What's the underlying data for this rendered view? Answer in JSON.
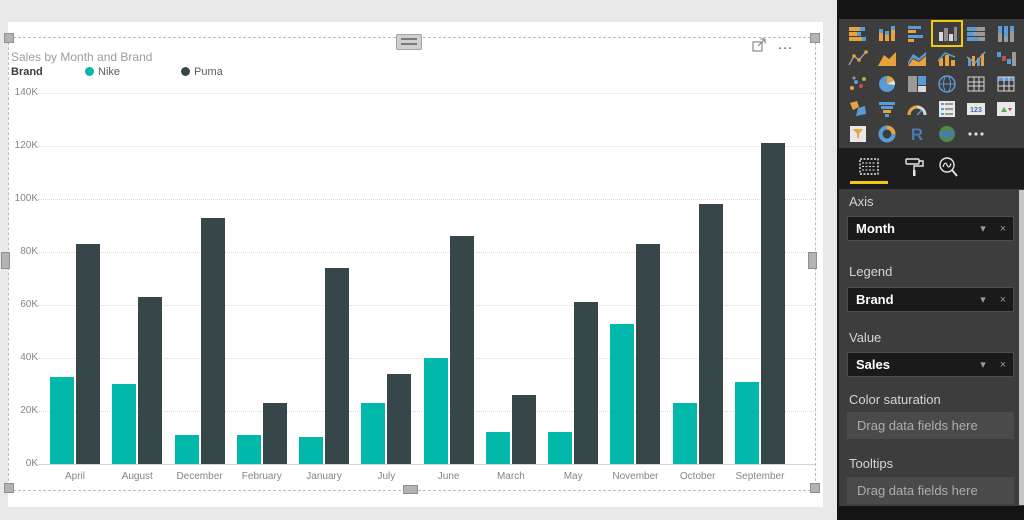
{
  "colors": {
    "canvas_bg": "#e9e9e9",
    "page_bg": "#ffffff",
    "panel_bg": "#3d3d3d",
    "accent_yellow": "#F2C811",
    "series_nike": "#01B8AA",
    "series_puma": "#374649"
  },
  "visual": {
    "more_options_label": "…"
  },
  "chart_data": {
    "type": "bar",
    "title": "Sales by Month and Brand",
    "legend_title": "Brand",
    "legend_position": "top-left",
    "categories": [
      "April",
      "August",
      "December",
      "February",
      "January",
      "July",
      "June",
      "March",
      "May",
      "November",
      "October",
      "September"
    ],
    "series": [
      {
        "name": "Nike",
        "color": "#01B8AA",
        "values": [
          33000,
          30000,
          11000,
          11000,
          10000,
          23000,
          40000,
          12000,
          12000,
          53000,
          23000,
          31000
        ]
      },
      {
        "name": "Puma",
        "color": "#374649",
        "values": [
          83000,
          63000,
          93000,
          23000,
          74000,
          34000,
          86000,
          26000,
          61000,
          83000,
          98000,
          121000
        ]
      }
    ],
    "xlabel": "",
    "ylabel": "",
    "ylim": [
      0,
      140000
    ],
    "y_ticks": [
      "0K",
      "20K",
      "40K",
      "60K",
      "80K",
      "100K",
      "120K",
      "140K"
    ],
    "grid": "horizontal-dotted"
  },
  "panel": {
    "gallery": {
      "selected": "clustered-column-chart",
      "icons": [
        "stacked-bar-chart",
        "stacked-column-chart",
        "clustered-bar-chart",
        "clustered-column-chart",
        "100-stacked-bar-chart",
        "100-stacked-column-chart",
        "line-chart",
        "area-chart",
        "stacked-area-chart",
        "line-stacked-column-chart",
        "line-clustered-column-chart",
        "waterfall-chart",
        "scatter-chart",
        "pie-chart",
        "treemap",
        "map",
        "table",
        "matrix",
        "filled-map",
        "funnel-chart",
        "gauge",
        "multi-row-card",
        "card",
        "kpi",
        "slicer",
        "donut-chart",
        "r-script-visual",
        "arcgis-map",
        "more-options"
      ]
    },
    "tabs": [
      {
        "name": "fields",
        "active": true
      },
      {
        "name": "format",
        "active": false
      },
      {
        "name": "analytics",
        "active": false
      }
    ],
    "glyphs": {
      "chevron_down": "▾",
      "remove": "×"
    },
    "wells": [
      {
        "label": "Axis",
        "field": "Month"
      },
      {
        "label": "Legend",
        "field": "Brand"
      },
      {
        "label": "Value",
        "field": "Sales"
      },
      {
        "label": "Color saturation",
        "placeholder": "Drag data fields here"
      },
      {
        "label": "Tooltips",
        "placeholder": "Drag data fields here"
      }
    ]
  }
}
